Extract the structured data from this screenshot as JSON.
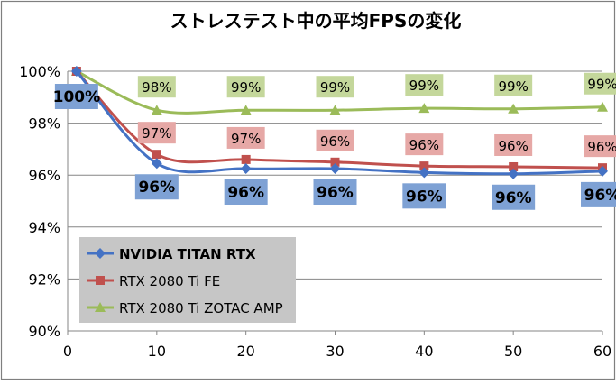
{
  "chart_data": {
    "type": "line",
    "title": "ストレステスト中の平均FPSの変化",
    "xlabel": "",
    "ylabel": "",
    "x": [
      1,
      10,
      20,
      30,
      40,
      50,
      60
    ],
    "xlim": [
      0,
      60
    ],
    "ylim": [
      0.9,
      1.0
    ],
    "xticks": [
      "0",
      "10",
      "20",
      "30",
      "40",
      "50",
      "60"
    ],
    "yticks": [
      "90%",
      "92%",
      "94%",
      "96%",
      "98%",
      "100%"
    ],
    "grid": true,
    "legend_position": "bottom-left",
    "series": [
      {
        "name": "NVIDIA TITAN RTX",
        "color": "#4472C4",
        "marker": "diamond",
        "label_bg": "#7EA1D4",
        "values": [
          1.0,
          0.9645,
          0.9625,
          0.9625,
          0.961,
          0.9605,
          0.9615
        ],
        "labels": [
          "100%",
          "96%",
          "96%",
          "96%",
          "96%",
          "96%",
          "96%"
        ]
      },
      {
        "name": "RTX 2080 Ti FE",
        "color": "#C0504D",
        "marker": "square",
        "label_bg": "#E6A8A6",
        "values": [
          1.0,
          0.968,
          0.966,
          0.965,
          0.9635,
          0.9632,
          0.9628
        ],
        "labels": [
          "",
          "97%",
          "97%",
          "96%",
          "96%",
          "96%",
          "96%"
        ]
      },
      {
        "name": "RTX 2080 Ti ZOTAC AMP",
        "color": "#9BBB59",
        "marker": "triangle",
        "label_bg": "#C4D79B",
        "values": [
          1.0,
          0.985,
          0.985,
          0.985,
          0.9857,
          0.9855,
          0.9862
        ],
        "labels": [
          "",
          "98%",
          "99%",
          "99%",
          "99%",
          "99%",
          "99%"
        ]
      }
    ]
  }
}
